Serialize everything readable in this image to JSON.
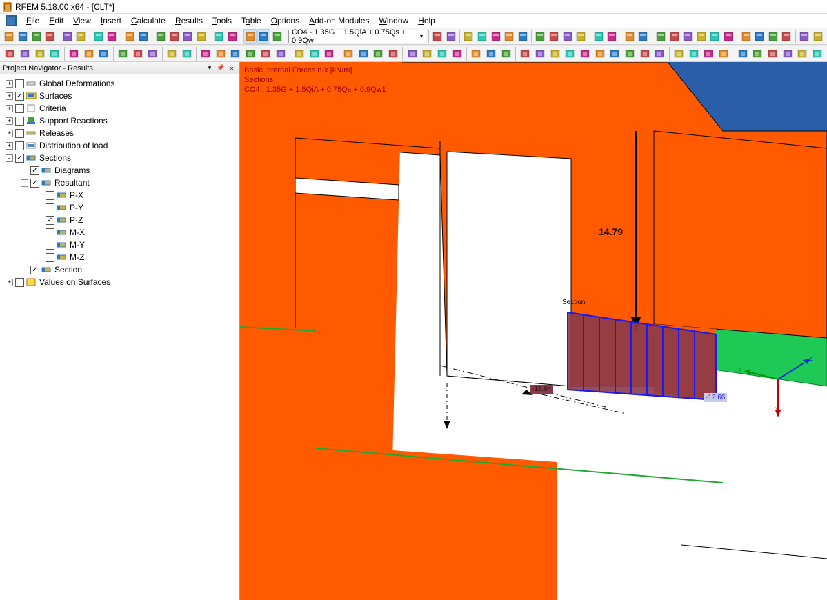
{
  "app": {
    "title": "RFEM 5.18.00 x64 - [CLT*]"
  },
  "menu": {
    "items": [
      "File",
      "Edit",
      "View",
      "Insert",
      "Calculate",
      "Results",
      "Tools",
      "Table",
      "Options",
      "Add-on Modules",
      "Window",
      "Help"
    ]
  },
  "toolbar1": {
    "combo": "CO4 - 1.35G + 1.5QiA + 0.75Qs + 0.9Qw"
  },
  "navigator": {
    "title": "Project Navigator - Results",
    "tree": [
      {
        "depth": 0,
        "exp": "+",
        "cb": false,
        "icon": "deform",
        "label": "Global Deformations"
      },
      {
        "depth": 0,
        "exp": "+",
        "cb": true,
        "icon": "surf",
        "label": "Surfaces"
      },
      {
        "depth": 0,
        "exp": "+",
        "cb": false,
        "icon": "crit",
        "label": "Criteria"
      },
      {
        "depth": 0,
        "exp": "+",
        "cb": false,
        "icon": "support",
        "label": "Support Reactions"
      },
      {
        "depth": 0,
        "exp": "+",
        "cb": false,
        "icon": "rel",
        "label": "Releases"
      },
      {
        "depth": 0,
        "exp": "+",
        "cb": false,
        "icon": "dist",
        "label": "Distribution of load"
      },
      {
        "depth": 0,
        "exp": "-",
        "cb": true,
        "icon": "sect",
        "label": "Sections"
      },
      {
        "depth": 1,
        "exp": "",
        "cb": true,
        "icon": "sect",
        "label": "Diagrams"
      },
      {
        "depth": 1,
        "exp": "-",
        "cb": true,
        "icon": "sect",
        "label": "Resultant"
      },
      {
        "depth": 2,
        "exp": "",
        "cb": false,
        "icon": "sect",
        "label": "P-X"
      },
      {
        "depth": 2,
        "exp": "",
        "cb": false,
        "icon": "sect",
        "label": "P-Y"
      },
      {
        "depth": 2,
        "exp": "",
        "cb": true,
        "icon": "sect",
        "label": "P-Z"
      },
      {
        "depth": 2,
        "exp": "",
        "cb": false,
        "icon": "sect",
        "label": "M-X"
      },
      {
        "depth": 2,
        "exp": "",
        "cb": false,
        "icon": "sect",
        "label": "M-Y"
      },
      {
        "depth": 2,
        "exp": "",
        "cb": false,
        "icon": "sect",
        "label": "M-Z"
      },
      {
        "depth": 1,
        "exp": "",
        "cb": true,
        "icon": "sect",
        "label": "Section"
      },
      {
        "depth": 0,
        "exp": "+",
        "cb": false,
        "icon": "val",
        "label": "Values on Surfaces"
      }
    ]
  },
  "viewport": {
    "info1": "Basic Internal Forces n-x [kN/m]",
    "info2": "Sections",
    "info3": "CO4 : 1.35G + 1.5QiA + 0.75Qs + 0.9Qw1",
    "force_value": "14.79",
    "section_label": "Section",
    "val_left": "-18.64",
    "val_right": "-12.66",
    "axis_x": "x",
    "axis_y": "y",
    "axis_z": "z",
    "colors": {
      "wall_main": "#ff5a00",
      "wall_back_blue": "#2b5ea8",
      "wall_green": "#1fc955",
      "edge": "#000000",
      "ground_edge": "#1fa830",
      "diagram_fill": "#8b3a4a",
      "diagram_stroke": "#1a1af0",
      "info_text": "#a00000",
      "val_left_bg": "#8b3a4a",
      "val_left_fg": "#2b1010",
      "val_right_bg": "#c9c9e8",
      "val_right_fg": "#1a1af0"
    }
  }
}
